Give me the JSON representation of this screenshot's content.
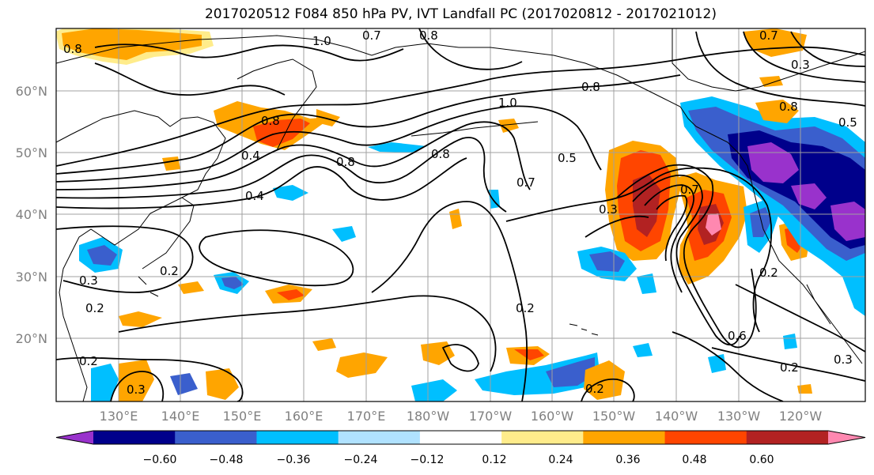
{
  "title": "2017020512 F084 850 hPa PV, IVT Landfall PC (2017020812 - 2017021012)",
  "map": {
    "lat_labels": [
      "60°N",
      "50°N",
      "40°N",
      "30°N",
      "20°N"
    ],
    "lon_labels": [
      "130°E",
      "140°E",
      "150°E",
      "160°E",
      "170°E",
      "180°W",
      "170°W",
      "160°W",
      "150°W",
      "140°W",
      "130°W",
      "120°W"
    ],
    "contour_labels": [
      "0.8",
      "1.0",
      "0.7",
      "0.8",
      "0.8",
      "0.4",
      "0.4",
      "0.8",
      "0.8",
      "1.0",
      "0.8",
      "0.5",
      "0.7",
      "0.7",
      "0.3",
      "0.2",
      "0.3",
      "0.2",
      "0.2",
      "0.2",
      "0.3",
      "0.2",
      "0.3",
      "0.2",
      "0.6",
      "0.2",
      "0.3",
      "0.8",
      "0.7",
      "0.5"
    ]
  },
  "colorbar": {
    "ticks": [
      "−0.60",
      "−0.48",
      "−0.36",
      "−0.24",
      "−0.12",
      "0.12",
      "0.24",
      "0.36",
      "0.48",
      "0.60"
    ],
    "colors": [
      "#9932cc",
      "#00008b",
      "#3a5fcd",
      "#00bfff",
      "#b0e2ff",
      "#ffffff",
      "#ffec8b",
      "#ffa500",
      "#ff4500",
      "#b22222",
      "#ff88b0"
    ]
  },
  "colors": {
    "positive_low": "#ffec8b",
    "positive_mid": "#ffa500",
    "positive_high": "#ff4500",
    "positive_vhigh": "#b22222",
    "positive_max": "#ff88b0",
    "negative_low": "#b0e2ff",
    "negative_mid": "#00bfff",
    "negative_high": "#3a5fcd",
    "negative_vhigh": "#00008b",
    "negative_max": "#9932cc"
  }
}
